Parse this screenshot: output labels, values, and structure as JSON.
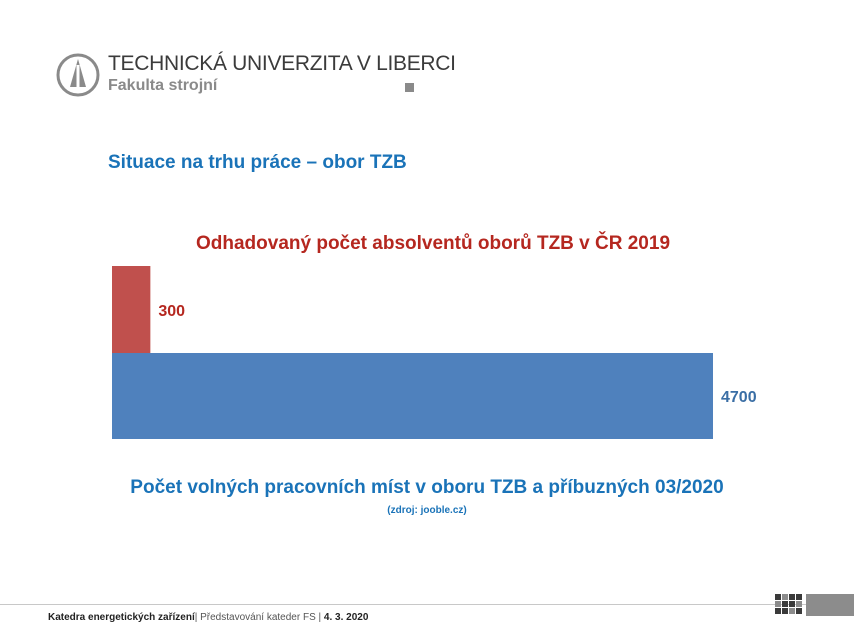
{
  "header": {
    "university": "TECHNICKÁ UNIVERZITA V LIBERCI",
    "faculty": "Fakulta strojní",
    "logo_icon": "tul-logo-icon"
  },
  "slide": {
    "title": "Situace na trhu práce – obor TZB"
  },
  "chart_data": {
    "type": "bar",
    "orientation": "horizontal",
    "categories": [
      "Odhadovaný počet absolventů oborů TZB v ČR 2019",
      "Počet volných pracovních míst v oboru TZB a příbuzných 03/2020"
    ],
    "values": [
      300,
      4700
    ],
    "data_labels": [
      "300",
      "4700"
    ],
    "colors": [
      "#c0504d",
      "#4f81bd"
    ],
    "source_note": "(zdroj: jooble.cz)",
    "xlim": [
      0,
      4700
    ],
    "grid": false,
    "legend": "none"
  },
  "footer": {
    "department": "Katedra energetických zařízení",
    "event": "Představování kateder FS",
    "date": "4. 3. 2020",
    "separator": "|",
    "separator2": " | "
  }
}
